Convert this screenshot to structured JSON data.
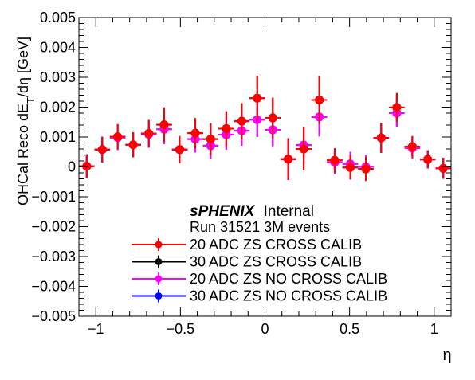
{
  "chart_data": {
    "type": "scatter",
    "title": "",
    "xlabel": "η",
    "ylabel": "OHCal Reco dE_T/dη [GeV]",
    "xlim": [
      -1.1,
      1.1
    ],
    "ylim": [
      -0.005,
      0.005
    ],
    "grid": false,
    "x_ticks": [
      -1,
      -0.5,
      0,
      0.5,
      1
    ],
    "x_tick_labels": [
      "−1",
      "−0.5",
      "0",
      "0.5",
      "1"
    ],
    "y_ticks": [
      -0.005,
      -0.004,
      -0.003,
      -0.002,
      -0.001,
      0,
      0.001,
      0.002,
      0.003,
      0.004,
      0.005
    ],
    "y_tick_labels": [
      "−0.005",
      "−0.004",
      "−0.003",
      "−0.002",
      "−0.001",
      "0",
      "0.001",
      "0.002",
      "0.003",
      "0.004",
      "0.005"
    ],
    "annotation_bold": "sPHENIX",
    "annotation_rest": "Internal",
    "annotation_line2": "Run 31521 3M events",
    "legend_placement": "bottom-center",
    "x_bin_halfwidth": 0.0458,
    "series": [
      {
        "name": "20 ADC ZS CROSS CALIB",
        "color": "#ff0000",
        "x": [
          -1.054,
          -0.962,
          -0.871,
          -0.779,
          -0.687,
          -0.596,
          -0.504,
          -0.412,
          -0.321,
          -0.229,
          -0.137,
          -0.046,
          0.046,
          0.137,
          0.229,
          0.321,
          0.412,
          0.504,
          0.596,
          0.687,
          0.779,
          0.871,
          0.962,
          1.054
        ],
        "y": [
          2e-05,
          0.00058,
          0.00101,
          0.00074,
          0.00112,
          0.00141,
          0.00058,
          0.00113,
          0.00093,
          0.00128,
          0.00153,
          0.0023,
          0.00164,
          0.00026,
          0.0006,
          0.00224,
          0.00022,
          -2e-05,
          -7e-05,
          0.00097,
          0.00199,
          0.00068,
          0.00025,
          -5e-05
        ],
        "err": [
          0.0004,
          0.00043,
          0.00042,
          0.00042,
          0.00045,
          0.00058,
          0.00045,
          0.0005,
          0.00053,
          0.00058,
          0.0006,
          0.00075,
          0.00068,
          0.0007,
          0.00072,
          0.0008,
          0.0004,
          0.0004,
          0.0004,
          0.0005,
          0.00048,
          0.00035,
          0.0003,
          0.00035
        ]
      },
      {
        "name": "30 ADC ZS CROSS CALIB",
        "color": "#000000",
        "x": [
          -1.054,
          -0.962,
          -0.871,
          -0.779,
          -0.687,
          -0.596,
          -0.504,
          -0.412,
          -0.321,
          -0.229,
          -0.137,
          -0.046,
          0.046,
          0.137,
          0.229,
          0.321,
          0.412,
          0.504,
          0.596,
          0.687,
          0.779,
          0.871,
          0.962,
          1.054
        ],
        "y": [
          2e-05,
          0.00058,
          0.00101,
          0.00074,
          0.00112,
          0.00141,
          0.00058,
          0.00113,
          0.00093,
          0.00128,
          0.00153,
          0.0023,
          0.00164,
          0.00026,
          0.0006,
          0.00224,
          0.00022,
          -2e-05,
          -7e-05,
          0.00097,
          0.00199,
          0.00068,
          0.00025,
          -5e-05
        ],
        "err": [
          0.0004,
          0.00043,
          0.00042,
          0.00042,
          0.00045,
          0.00058,
          0.00045,
          0.0005,
          0.00053,
          0.00058,
          0.0006,
          0.00075,
          0.00068,
          0.0007,
          0.00072,
          0.0008,
          0.0004,
          0.0004,
          0.0004,
          0.0005,
          0.00048,
          0.00035,
          0.0003,
          0.00035
        ]
      },
      {
        "name": "20 ADC ZS NO CROSS CALIB",
        "color": "#ff00ff",
        "x": [
          -1.054,
          -0.962,
          -0.871,
          -0.779,
          -0.687,
          -0.596,
          -0.504,
          -0.412,
          -0.321,
          -0.229,
          -0.137,
          -0.046,
          0.046,
          0.137,
          0.229,
          0.321,
          0.412,
          0.504,
          0.596,
          0.687,
          0.779,
          0.871,
          0.962,
          1.054
        ],
        "y": [
          2e-05,
          0.00058,
          0.00098,
          0.00074,
          0.00109,
          0.00126,
          0.00058,
          0.00093,
          0.00071,
          0.00108,
          0.00121,
          0.00158,
          0.00124,
          0.00026,
          0.00073,
          0.00167,
          0.00015,
          0.0001,
          0.0,
          0.00097,
          0.0018,
          0.00063,
          0.00025,
          -5e-05
        ],
        "err": [
          0.0004,
          0.00043,
          0.00042,
          0.00042,
          0.00045,
          0.0005,
          0.00045,
          0.00045,
          0.00045,
          0.0005,
          0.0005,
          0.00058,
          0.00055,
          0.0007,
          0.0006,
          0.00065,
          0.0004,
          0.0004,
          0.0004,
          0.0005,
          0.00048,
          0.00035,
          0.0003,
          0.00035
        ]
      },
      {
        "name": "30 ADC ZS NO CROSS CALIB",
        "color": "#0000ff",
        "x": [
          -1.054,
          -0.962,
          -0.871,
          -0.779,
          -0.687,
          -0.596,
          -0.504,
          -0.412,
          -0.321,
          -0.229,
          -0.137,
          -0.046,
          0.046,
          0.137,
          0.229,
          0.321,
          0.412,
          0.504,
          0.596,
          0.687,
          0.779,
          0.871,
          0.962,
          1.054
        ],
        "y": [
          2e-05,
          0.00058,
          0.00098,
          0.00074,
          0.00109,
          0.00126,
          0.00058,
          0.00093,
          0.00071,
          0.00108,
          0.00121,
          0.00158,
          0.00124,
          0.00026,
          0.00073,
          0.00167,
          0.00015,
          0.0001,
          0.0,
          0.00097,
          0.0018,
          0.00063,
          0.00025,
          -5e-05
        ],
        "err": [
          0.0004,
          0.00043,
          0.00042,
          0.00042,
          0.00045,
          0.0005,
          0.00045,
          0.00045,
          0.00045,
          0.0005,
          0.0005,
          0.00058,
          0.00055,
          0.0007,
          0.0006,
          0.00065,
          0.0004,
          0.0004,
          0.0004,
          0.0005,
          0.00048,
          0.00035,
          0.0003,
          0.00035
        ]
      }
    ],
    "draw_order": [
      3,
      1,
      2,
      0
    ]
  }
}
